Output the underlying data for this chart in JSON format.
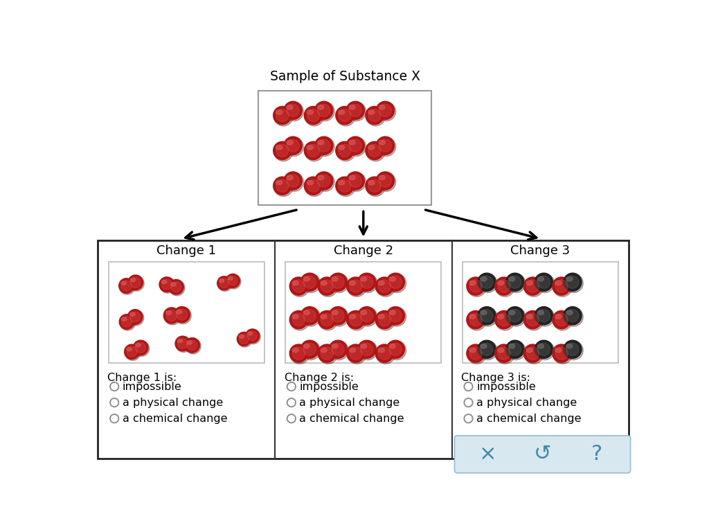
{
  "title": "Sample of Substance X",
  "bg_color": "#ffffff",
  "change_labels": [
    "Change 1",
    "Change 2",
    "Change 3"
  ],
  "radio_options": [
    "impossible",
    "a physical change",
    "a chemical change"
  ],
  "red_dark": "#8B1010",
  "red_mid": "#B01515",
  "red_light": "#CC2020",
  "red_sheen": "#E06060",
  "gray_dark": "#333333",
  "gray_border": "#999999",
  "gray_inner": "#bbbbbb",
  "dark_atom": "#222222",
  "dark_sheen": "#777777"
}
